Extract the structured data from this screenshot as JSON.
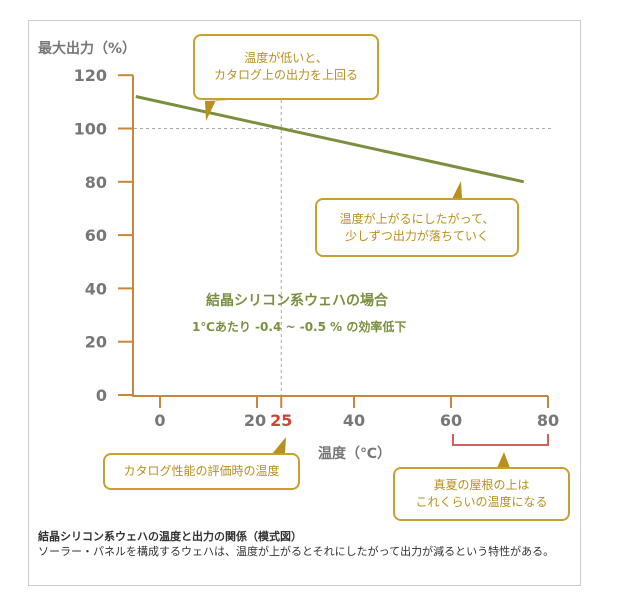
{
  "chart_data": {
    "type": "line",
    "ylabel": "最大出力（%）",
    "xlabel": "温度（℃）",
    "yticks": [
      0,
      20,
      40,
      60,
      80,
      100,
      120
    ],
    "xticks": [
      0,
      20,
      25,
      40,
      60,
      80
    ],
    "highlight_tick": 25,
    "ylim": [
      0,
      120
    ],
    "xlim": [
      -5,
      80
    ],
    "grid": false,
    "reference_lines": {
      "y": 100,
      "x": 25
    },
    "series": [
      {
        "x": [
          -5,
          75
        ],
        "y": [
          112,
          80
        ]
      }
    ],
    "line_color": "#7a9040",
    "axis_color": "#c8873a",
    "range_bracket": [
      60,
      80
    ],
    "annotation_title": "結晶シリコン系ウェハの場合",
    "annotation_sub": "1℃あたり -0.4 ~ -0.5 % の効率低下"
  },
  "callouts": {
    "low_temp": [
      "温度が低いと、",
      "カタログ上の出力を上回る"
    ],
    "rising": [
      "温度が上がるにしたがって、",
      "少しずつ出力が落ちていく"
    ],
    "catalog": "カタログ性能の評価時の温度",
    "summer": [
      "真夏の屋根の上は",
      "これくらいの温度になる"
    ]
  },
  "caption": {
    "title": "結晶シリコン系ウェハの温度と出力の関係（模式図）",
    "body": "ソーラー・パネルを構成するウェハは、温度が上がるとそれにしたがって出力が減るという特性がある。"
  }
}
